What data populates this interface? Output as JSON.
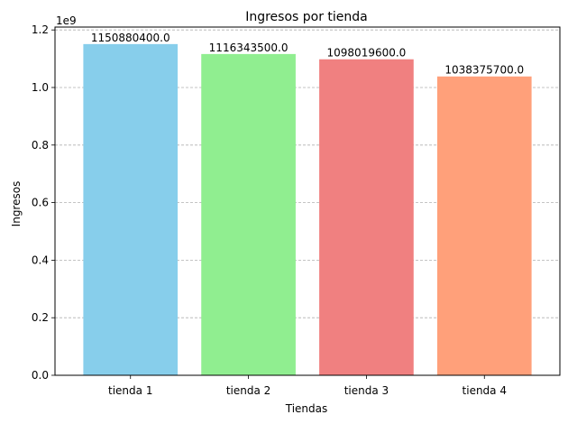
{
  "chart_data": {
    "type": "bar",
    "title": "Ingresos por tienda",
    "xlabel": "Tiendas",
    "ylabel": "Ingresos",
    "y_offset_text": "1e9",
    "y_scale": 1000000000,
    "ylim": [
      0,
      1.2
    ],
    "y_ticks": [
      0.0,
      0.2,
      0.4,
      0.6,
      0.8,
      1.0,
      1.2
    ],
    "y_tick_labels": [
      "0.0",
      "0.2",
      "0.4",
      "0.6",
      "0.8",
      "1.0",
      "1.2"
    ],
    "grid": "horizontal dashed",
    "categories": [
      "tienda 1",
      "tienda 2",
      "tienda 3",
      "tienda 4"
    ],
    "values": [
      1150880400.0,
      1116343500.0,
      1098019600.0,
      1038375700.0
    ],
    "value_labels": [
      "1150880400.0",
      "1116343500.0",
      "1098019600.0",
      "1038375700.0"
    ],
    "colors": [
      "#87ceeb",
      "#90ee90",
      "#f08080",
      "#ffa07a"
    ]
  }
}
